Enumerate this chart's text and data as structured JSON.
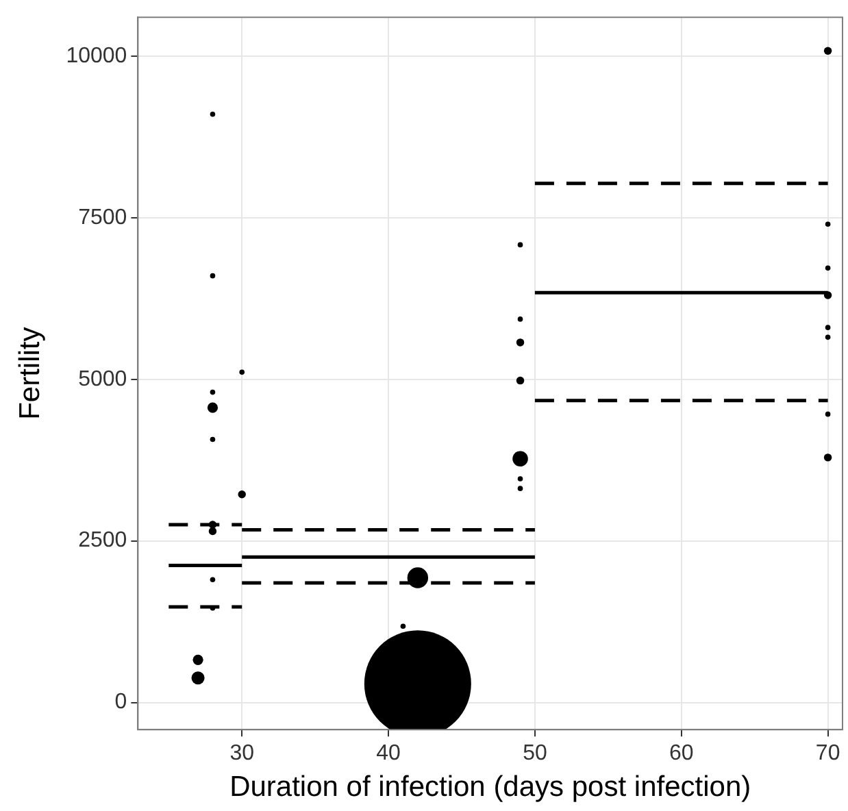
{
  "chart_data": {
    "type": "bubble",
    "xlabel": "Duration of infection (days post infection)",
    "ylabel": "Fertility",
    "xlim": [
      22.9,
      71
    ],
    "xticks": [
      30,
      40,
      50,
      60,
      70
    ],
    "ylim": [
      -420,
      10600
    ],
    "yticks": [
      0,
      2500,
      5000,
      7500,
      10000
    ],
    "grid": true,
    "legend": false,
    "series": [
      {
        "type": "bubble",
        "color": "#000000",
        "x": [
          27,
          27,
          28,
          28,
          28,
          28,
          28,
          28,
          28,
          28,
          28,
          30,
          30,
          41,
          42,
          42,
          49,
          49,
          49,
          49,
          49,
          49,
          49,
          70,
          70,
          70,
          70,
          70,
          70,
          70,
          70
        ],
        "values": [
          660,
          380,
          9100,
          6600,
          4800,
          4560,
          4070,
          2750,
          2650,
          1900,
          1460,
          5110,
          3220,
          1180,
          290,
          1930,
          7080,
          5930,
          5570,
          4980,
          3770,
          3460,
          3310,
          10080,
          7400,
          6720,
          6300,
          5800,
          5650,
          4460,
          3790
        ],
        "sizes": [
          0.0095,
          0.015,
          0.0024,
          0.0024,
          0.0024,
          0.0095,
          0.0024,
          0.0054,
          0.0054,
          0.0024,
          0.0024,
          0.0024,
          0.0054,
          0.0024,
          1,
          0.038,
          0.0024,
          0.0024,
          0.0054,
          0.0054,
          0.021,
          0.0024,
          0.0024,
          0.0054,
          0.0024,
          0.0024,
          0.0054,
          0.0024,
          0.0024,
          0.0024,
          0.0054
        ]
      },
      {
        "type": "line",
        "color": "#000000",
        "line_style": "solid",
        "x": [
          25,
          30
        ],
        "values": [
          2120,
          2120
        ]
      },
      {
        "type": "line",
        "color": "#000000",
        "line_style": "dashed",
        "x": [
          25,
          30
        ],
        "values": [
          2750,
          2750
        ]
      },
      {
        "type": "line",
        "color": "#000000",
        "line_style": "dashed",
        "x": [
          25,
          30
        ],
        "values": [
          1480,
          1480
        ]
      },
      {
        "type": "line",
        "color": "#000000",
        "line_style": "solid",
        "x": [
          30,
          50
        ],
        "values": [
          2250,
          2250
        ]
      },
      {
        "type": "line",
        "color": "#000000",
        "line_style": "dashed",
        "x": [
          30,
          50
        ],
        "values": [
          2670,
          2670
        ]
      },
      {
        "type": "line",
        "color": "#000000",
        "line_style": "dashed",
        "x": [
          30,
          50
        ],
        "values": [
          1850,
          1850
        ]
      },
      {
        "type": "line",
        "color": "#000000",
        "line_style": "solid",
        "x": [
          50,
          70
        ],
        "values": [
          6340,
          6340
        ]
      },
      {
        "type": "line",
        "color": "#000000",
        "line_style": "dashed",
        "x": [
          50,
          70
        ],
        "values": [
          8030,
          8030
        ]
      },
      {
        "type": "line",
        "color": "#000000",
        "line_style": "dashed",
        "x": [
          50,
          70
        ],
        "values": [
          4670,
          4670
        ]
      }
    ]
  }
}
